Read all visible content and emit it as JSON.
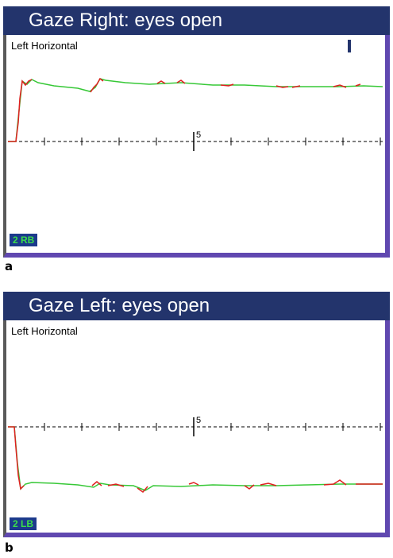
{
  "panels": [
    {
      "title": "Gaze Right: eyes open",
      "trace_label": "Left Horizontal",
      "badge": "2 RB",
      "axis_tick_label": "5",
      "caption": "a"
    },
    {
      "title": "Gaze Left: eyes open",
      "trace_label": "Left Horizontal",
      "badge": "2 LB",
      "axis_tick_label": "5",
      "caption": "b"
    }
  ],
  "colors": {
    "title_bar": "#23346c",
    "frame": "#6048b0",
    "trace_green": "#37c837",
    "trace_red": "#e02020",
    "badge_text": "#3adf4a"
  }
}
